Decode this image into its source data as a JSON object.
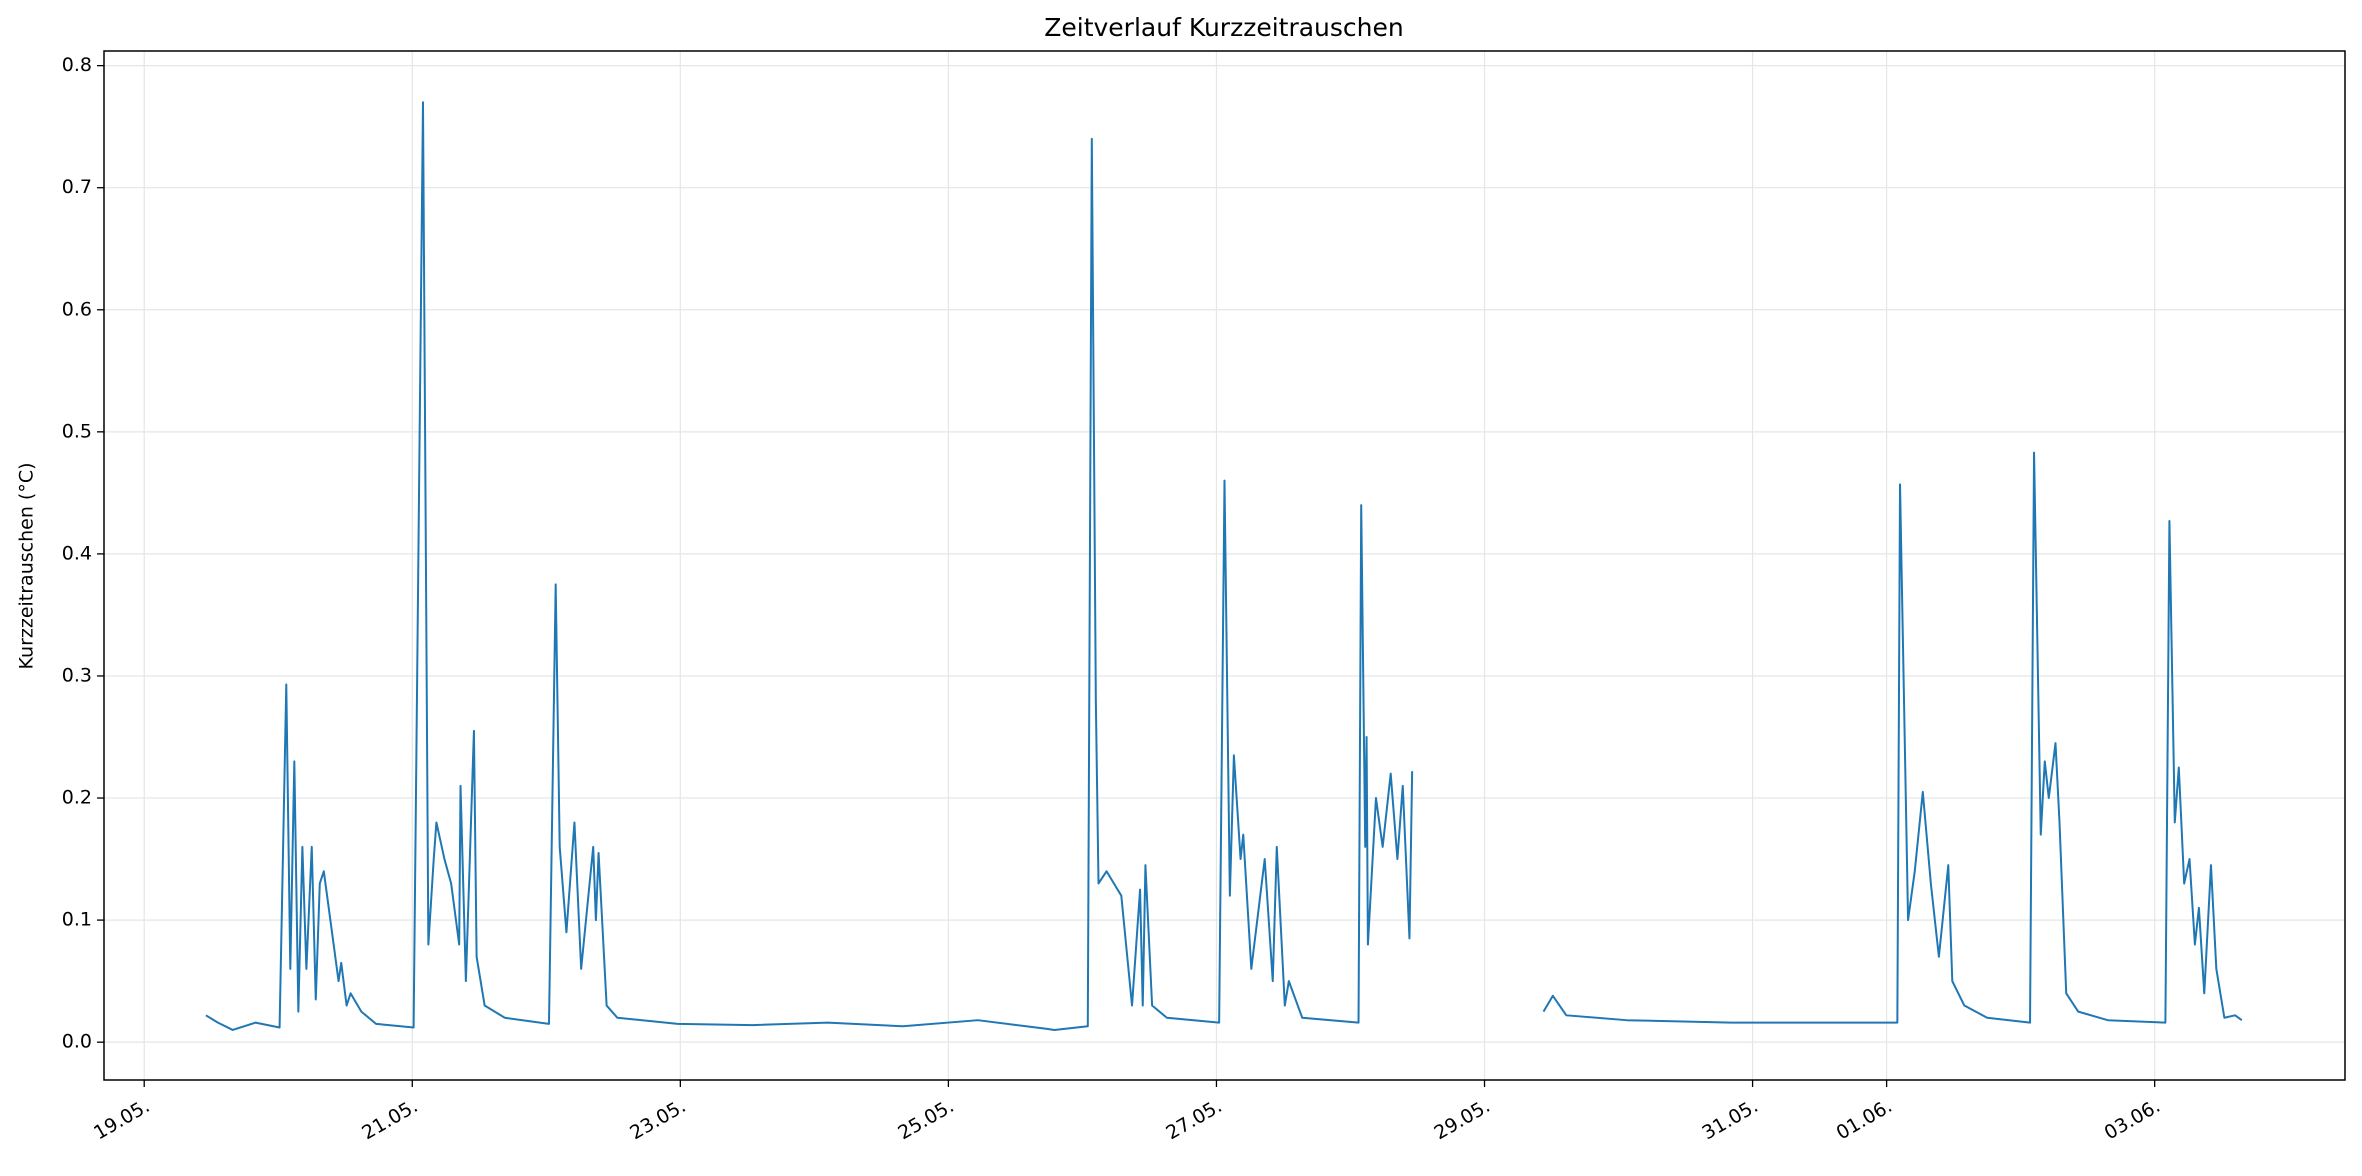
{
  "chart_data": {
    "type": "line",
    "title": "Zeitverlauf Kurzzeitrauschen",
    "y_label": "Kurzzeitrauschen (°C)",
    "color": "#1f77b4",
    "grid": true,
    "x": [
      19.46,
      19.55,
      19.66,
      19.83,
      20.01,
      20.06,
      20.09,
      20.12,
      20.15,
      20.18,
      20.21,
      20.25,
      20.28,
      20.31,
      20.34,
      20.45,
      20.47,
      20.51,
      20.54,
      20.62,
      20.73,
      21.01,
      21.08,
      21.12,
      21.16,
      21.18,
      21.24,
      21.29,
      21.35,
      21.36,
      21.4,
      21.46,
      21.48,
      21.54,
      21.69,
      22.02,
      22.07,
      22.1,
      22.15,
      22.17,
      22.21,
      22.26,
      22.35,
      22.37,
      22.39,
      22.45,
      22.53,
      22.98,
      23.54,
      24.1,
      24.66,
      25.22,
      25.73,
      25.79,
      26.04,
      26.07,
      26.1,
      26.12,
      26.18,
      26.29,
      26.37,
      26.43,
      26.45,
      26.47,
      26.52,
      26.63,
      27.02,
      27.06,
      27.1,
      27.13,
      27.18,
      27.2,
      27.26,
      27.36,
      27.42,
      27.45,
      27.51,
      27.54,
      27.64,
      28.06,
      28.08,
      28.11,
      28.12,
      28.13,
      28.19,
      28.24,
      28.3,
      28.35,
      28.39,
      28.44,
      28.46,
      28.95,
      29.44,
      29.51,
      29.61,
      30.06,
      30.84,
      32.08,
      32.1,
      32.16,
      32.21,
      32.27,
      32.33,
      32.39,
      32.46,
      32.49,
      32.58,
      32.75,
      33.07,
      33.1,
      33.15,
      33.18,
      33.21,
      33.26,
      33.29,
      33.34,
      33.43,
      33.65,
      34.08,
      34.11,
      34.15,
      34.18,
      34.22,
      34.26,
      34.3,
      34.33,
      34.37,
      34.42,
      34.46,
      34.52,
      34.6,
      34.65
    ],
    "values": [
      0.022,
      0.016,
      0.01,
      0.016,
      0.012,
      0.293,
      0.06,
      0.23,
      0.025,
      0.16,
      0.06,
      0.16,
      0.035,
      0.13,
      0.14,
      0.05,
      0.065,
      0.03,
      0.04,
      0.025,
      0.015,
      0.012,
      0.77,
      0.08,
      0.15,
      0.18,
      0.15,
      0.13,
      0.08,
      0.21,
      0.05,
      0.255,
      0.07,
      0.03,
      0.02,
      0.015,
      0.375,
      0.16,
      0.09,
      0.12,
      0.18,
      0.06,
      0.16,
      0.1,
      0.155,
      0.03,
      0.02,
      0.015,
      0.014,
      0.016,
      0.013,
      0.018,
      0.011,
      0.01,
      0.013,
      0.74,
      0.28,
      0.13,
      0.14,
      0.12,
      0.03,
      0.125,
      0.03,
      0.145,
      0.03,
      0.02,
      0.016,
      0.46,
      0.12,
      0.235,
      0.15,
      0.17,
      0.06,
      0.15,
      0.05,
      0.16,
      0.03,
      0.05,
      0.02,
      0.016,
      0.44,
      0.16,
      0.25,
      0.08,
      0.2,
      0.16,
      0.22,
      0.15,
      0.21,
      0.085,
      0.222,
      null,
      0.025,
      0.038,
      0.022,
      0.018,
      0.016,
      0.016,
      0.457,
      0.1,
      0.14,
      0.205,
      0.13,
      0.07,
      0.145,
      0.05,
      0.03,
      0.02,
      0.016,
      0.483,
      0.17,
      0.23,
      0.2,
      0.245,
      0.18,
      0.04,
      0.025,
      0.018,
      0.016,
      0.427,
      0.18,
      0.225,
      0.13,
      0.15,
      0.08,
      0.11,
      0.04,
      0.145,
      0.06,
      0.02,
      0.022,
      0.018
    ],
    "xlim": [
      18.7,
      35.42
    ],
    "ylim": [
      -0.031,
      0.812
    ],
    "xticks": [
      {
        "value": 19,
        "label": "19.05."
      },
      {
        "value": 21,
        "label": "21.05."
      },
      {
        "value": 23,
        "label": "23.05."
      },
      {
        "value": 25,
        "label": "25.05."
      },
      {
        "value": 27,
        "label": "27.05."
      },
      {
        "value": 29,
        "label": "29.05."
      },
      {
        "value": 31,
        "label": "31.05."
      },
      {
        "value": 32,
        "label": "01.06."
      },
      {
        "value": 34,
        "label": "03.06."
      }
    ],
    "yticks": [
      {
        "value": 0,
        "label": "0.0"
      },
      0.1,
      0.2,
      0.3,
      0.4,
      0.5,
      0.6,
      0.7,
      0.8
    ]
  }
}
